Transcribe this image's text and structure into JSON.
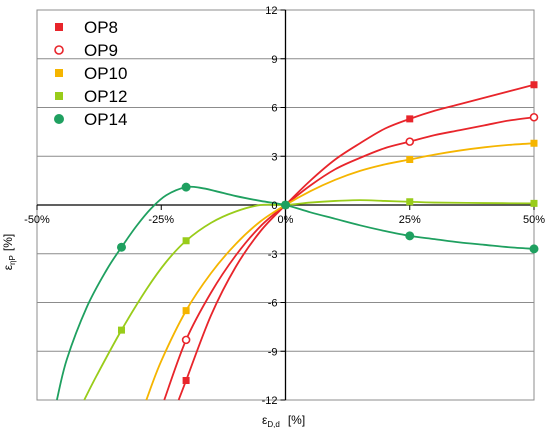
{
  "chart_data": {
    "type": "scatter",
    "xlabel": "ε",
    "xlabel_sub": "D,d",
    "xlabel_unit": "[%]",
    "ylabel": "ε",
    "ylabel_sub": "ηP",
    "ylabel_unit": "[%]",
    "xlim": [
      -50,
      50
    ],
    "ylim": [
      -12,
      12
    ],
    "x_ticks": [
      -50,
      -25,
      0,
      25,
      50
    ],
    "x_tick_labels": [
      "-50%",
      "-25%",
      "0%",
      "25%",
      "50%"
    ],
    "y_ticks": [
      -12,
      -9,
      -6,
      -3,
      0,
      3,
      6,
      9,
      12
    ],
    "y_tick_labels": [
      "-12",
      "-9",
      "-6",
      "-3",
      "0",
      "3",
      "6",
      "9",
      "12"
    ],
    "grid": "horizontal",
    "legend_position": "top-left",
    "series": [
      {
        "name": "OP8",
        "color": "#e8252b",
        "marker": "square-filled",
        "points": [
          [
            -20,
            -10.8
          ],
          [
            0,
            0
          ],
          [
            25,
            5.3
          ],
          [
            50,
            7.4
          ]
        ],
        "curve": [
          [
            -21.5,
            -12
          ],
          [
            -20,
            -10.8
          ],
          [
            -15,
            -6.8
          ],
          [
            -10,
            -3.8
          ],
          [
            -5,
            -1.6
          ],
          [
            0,
            0
          ],
          [
            5,
            1.5
          ],
          [
            10,
            2.8
          ],
          [
            15,
            3.8
          ],
          [
            20,
            4.7
          ],
          [
            25,
            5.3
          ],
          [
            30,
            5.8
          ],
          [
            35,
            6.2
          ],
          [
            40,
            6.6
          ],
          [
            45,
            7.0
          ],
          [
            50,
            7.4
          ]
        ]
      },
      {
        "name": "OP9",
        "color": "#e8252b",
        "marker": "circle-open",
        "points": [
          [
            -20,
            -8.3
          ],
          [
            0,
            0
          ],
          [
            25,
            3.9
          ],
          [
            50,
            5.4
          ]
        ],
        "curve": [
          [
            -24.4,
            -12
          ],
          [
            -20,
            -8.3
          ],
          [
            -15,
            -5.4
          ],
          [
            -10,
            -3.1
          ],
          [
            -5,
            -1.3
          ],
          [
            0,
            0
          ],
          [
            5,
            1.2
          ],
          [
            10,
            2.2
          ],
          [
            15,
            2.9
          ],
          [
            20,
            3.5
          ],
          [
            25,
            3.9
          ],
          [
            30,
            4.3
          ],
          [
            35,
            4.6
          ],
          [
            40,
            4.9
          ],
          [
            45,
            5.2
          ],
          [
            50,
            5.4
          ]
        ]
      },
      {
        "name": "OP10",
        "color": "#f5b500",
        "marker": "square-filled",
        "points": [
          [
            -20,
            -6.5
          ],
          [
            0,
            0
          ],
          [
            25,
            2.8
          ],
          [
            50,
            3.8
          ]
        ],
        "curve": [
          [
            -28,
            -12
          ],
          [
            -25,
            -9.6
          ],
          [
            -20,
            -6.5
          ],
          [
            -15,
            -4.2
          ],
          [
            -10,
            -2.4
          ],
          [
            -5,
            -1.0
          ],
          [
            0,
            0
          ],
          [
            5,
            0.85
          ],
          [
            10,
            1.55
          ],
          [
            15,
            2.1
          ],
          [
            20,
            2.5
          ],
          [
            25,
            2.8
          ],
          [
            30,
            3.1
          ],
          [
            35,
            3.35
          ],
          [
            40,
            3.55
          ],
          [
            45,
            3.7
          ],
          [
            50,
            3.8
          ]
        ]
      },
      {
        "name": "OP12",
        "color": "#99cc1a",
        "marker": "square-filled",
        "points": [
          [
            -33,
            -7.7
          ],
          [
            -20,
            -2.2
          ],
          [
            0,
            0
          ],
          [
            25,
            0.2
          ],
          [
            50,
            0.1
          ]
        ],
        "curve": [
          [
            -40.5,
            -12
          ],
          [
            -38,
            -10.5
          ],
          [
            -33,
            -7.7
          ],
          [
            -28,
            -5.2
          ],
          [
            -24,
            -3.5
          ],
          [
            -20,
            -2.2
          ],
          [
            -15,
            -1.1
          ],
          [
            -10,
            -0.4
          ],
          [
            -5,
            0.0
          ],
          [
            0,
            0
          ],
          [
            5,
            0.15
          ],
          [
            10,
            0.25
          ],
          [
            15,
            0.3
          ],
          [
            20,
            0.25
          ],
          [
            25,
            0.2
          ],
          [
            30,
            0.15
          ],
          [
            40,
            0.12
          ],
          [
            50,
            0.1
          ]
        ]
      },
      {
        "name": "OP14",
        "color": "#1fa060",
        "marker": "circle-filled",
        "points": [
          [
            -33,
            -2.6
          ],
          [
            -20,
            1.1
          ],
          [
            0,
            0
          ],
          [
            25,
            -1.9
          ],
          [
            50,
            -2.7
          ]
        ],
        "curve": [
          [
            -46,
            -12
          ],
          [
            -44,
            -9.5
          ],
          [
            -40,
            -6.3
          ],
          [
            -36,
            -4.0
          ],
          [
            -33,
            -2.6
          ],
          [
            -30,
            -1.3
          ],
          [
            -27,
            -0.2
          ],
          [
            -24,
            0.6
          ],
          [
            -20,
            1.1
          ],
          [
            -17,
            1.05
          ],
          [
            -14,
            0.85
          ],
          [
            -10,
            0.55
          ],
          [
            -5,
            0.25
          ],
          [
            0,
            0
          ],
          [
            5,
            -0.45
          ],
          [
            10,
            -0.85
          ],
          [
            15,
            -1.25
          ],
          [
            20,
            -1.6
          ],
          [
            25,
            -1.9
          ],
          [
            30,
            -2.1
          ],
          [
            35,
            -2.3
          ],
          [
            40,
            -2.45
          ],
          [
            45,
            -2.6
          ],
          [
            50,
            -2.7
          ]
        ]
      }
    ]
  }
}
